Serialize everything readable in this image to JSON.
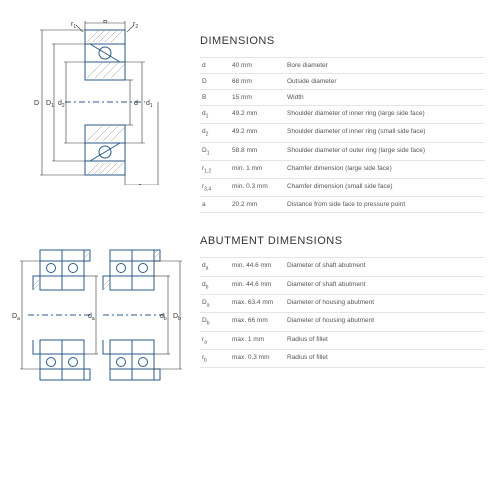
{
  "sections": {
    "dimensions": {
      "title": "DIMENSIONS",
      "rows": [
        {
          "sym": "d",
          "val": "40 mm",
          "desc": "Bore diameter"
        },
        {
          "sym": "D",
          "val": "68 mm",
          "desc": "Outside diameter"
        },
        {
          "sym": "B",
          "val": "15 mm",
          "desc": "Width"
        },
        {
          "sym": "d1",
          "sub": "1",
          "syml": "d",
          "val": "49.2 mm",
          "desc": "Shoulder diameter of inner ring (large side face)"
        },
        {
          "sym": "d2",
          "sub": "2",
          "syml": "d",
          "val": "49.2 mm",
          "desc": "Shoulder diameter of inner ring (small side face)"
        },
        {
          "sym": "D1",
          "sub": "1",
          "syml": "D",
          "val": "58.8 mm",
          "desc": "Shoulder diameter of outer ring (large side face)"
        },
        {
          "sym": "r12",
          "sub": "1,2",
          "syml": "r",
          "val": "min. 1 mm",
          "desc": "Chamfer dimension (large side face)"
        },
        {
          "sym": "r34",
          "sub": "3,4",
          "syml": "r",
          "val": "min. 0.3 mm",
          "desc": "Chamfer dimension (small side face)"
        },
        {
          "sym": "a",
          "val": "20.2 mm",
          "desc": "Distance from side face to pressure point"
        }
      ]
    },
    "abutment": {
      "title": "ABUTMENT DIMENSIONS",
      "rows": [
        {
          "sym": "da",
          "sub": "a",
          "syml": "d",
          "val": "min. 44.6 mm",
          "desc": "Diameter of shaft abutment"
        },
        {
          "sym": "db",
          "sub": "b",
          "syml": "d",
          "val": "min. 44.6 mm",
          "desc": "Diameter of shaft abutment"
        },
        {
          "sym": "Da",
          "sub": "a",
          "syml": "D",
          "val": "max. 63.4 mm",
          "desc": "Diameter of housing abutment"
        },
        {
          "sym": "Db",
          "sub": "b",
          "syml": "D",
          "val": "max. 66 mm",
          "desc": "Diameter of housing abutment"
        },
        {
          "sym": "ra",
          "sub": "a",
          "syml": "r",
          "val": "max. 1 mm",
          "desc": "Radius of fillet"
        },
        {
          "sym": "rb",
          "sub": "b",
          "syml": "r",
          "val": "max. 0.3 mm",
          "desc": "Radius of fillet"
        }
      ]
    }
  },
  "diagram_colors": {
    "stroke": "#2a5a8a",
    "hatch": "#888",
    "dim": "#333",
    "bg": "#ffffff"
  }
}
